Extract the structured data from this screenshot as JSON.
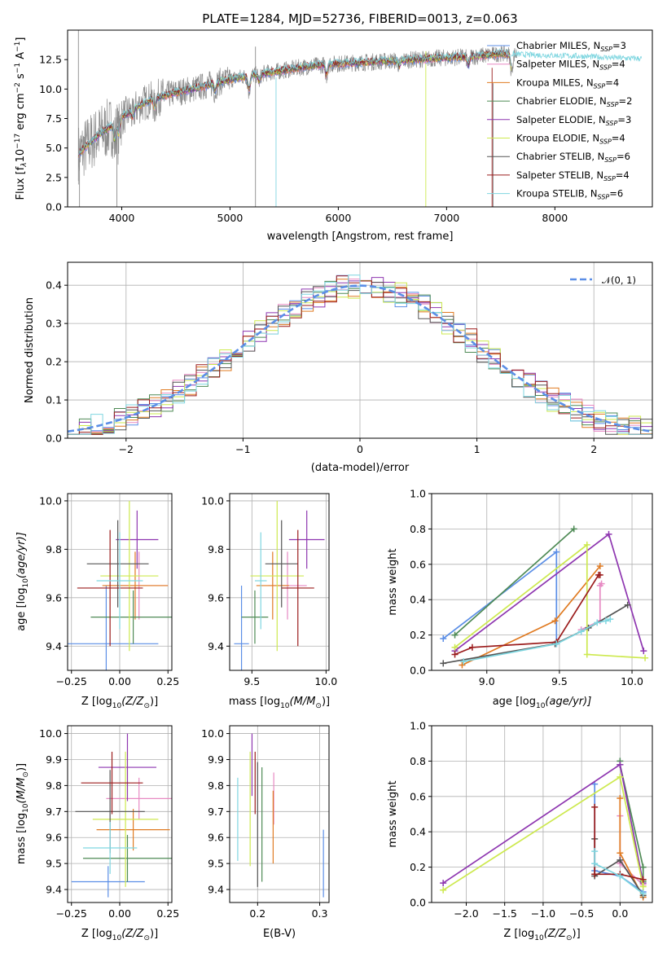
{
  "colors": {
    "Chabrier MILES": "#5b8ee6",
    "Salpeter MILES": "#e78ac3",
    "Kroupa MILES": "#e07b22",
    "Chabrier ELODIE": "#4e8a55",
    "Salpeter ELODIE": "#8e36b0",
    "Kroupa ELODIE": "#cde94f",
    "Chabrier STELIB": "#555555",
    "Salpeter STELIB": "#9b1c1c",
    "Kroupa STELIB": "#7fd6e0",
    "data": "#8c8c8c",
    "gaussian": "#5b8ee6"
  },
  "chart_data": [
    {
      "id": "spectrum",
      "type": "line",
      "title": "PLATE=1284, MJD=52736, FIBERID=0013, z=0.063",
      "xlabel": "wavelength [Angstrom, rest frame]",
      "ylabel_parts": [
        "Flux [f",
        "λ",
        "10",
        "−17",
        " erg cm",
        "−2",
        " s",
        "−1",
        " A",
        "−1",
        "]"
      ],
      "xlim": [
        3500,
        8900
      ],
      "ylim": [
        0,
        15
      ],
      "xticks": [
        "4000",
        "5000",
        "6000",
        "7000",
        "8000"
      ],
      "yticks": [
        "0.0",
        "2.5",
        "5.0",
        "7.5",
        "10.0",
        "12.5"
      ],
      "legend_position": "right",
      "legend": [
        {
          "base": "Chabrier MILES, N",
          "sub": "SSP",
          "tail": "=3"
        },
        {
          "base": "Salpeter MILES, N",
          "sub": "SSP",
          "tail": "=4"
        },
        {
          "base": "Kroupa MILES, N",
          "sub": "SSP",
          "tail": "=4"
        },
        {
          "base": "Chabrier ELODIE, N",
          "sub": "SSP",
          "tail": "=2"
        },
        {
          "base": "Salpeter ELODIE, N",
          "sub": "SSP",
          "tail": "=3"
        },
        {
          "base": "Kroupa ELODIE, N",
          "sub": "SSP",
          "tail": "=4"
        },
        {
          "base": "Chabrier STELIB, N",
          "sub": "SSP",
          "tail": "=6"
        },
        {
          "base": "Salpeter STELIB, N",
          "sub": "SSP",
          "tail": "=4"
        },
        {
          "base": "Kroupa STELIB, N",
          "sub": "SSP",
          "tail": "=6"
        }
      ],
      "continuum": [
        [
          3600,
          4.5
        ],
        [
          3700,
          5.4
        ],
        [
          3800,
          6.2
        ],
        [
          3900,
          6.8
        ],
        [
          4000,
          7.6
        ],
        [
          4100,
          8.2
        ],
        [
          4200,
          8.8
        ],
        [
          4300,
          9.2
        ],
        [
          4500,
          9.7
        ],
        [
          4700,
          10.1
        ],
        [
          4900,
          10.6
        ],
        [
          5100,
          11.0
        ],
        [
          5300,
          11.3
        ],
        [
          5500,
          11.6
        ],
        [
          5700,
          11.9
        ],
        [
          5900,
          12.1
        ],
        [
          6100,
          12.2
        ],
        [
          6300,
          12.3
        ],
        [
          6500,
          12.4
        ],
        [
          6700,
          12.5
        ],
        [
          6900,
          12.6
        ],
        [
          7100,
          12.7
        ],
        [
          7300,
          12.8
        ],
        [
          7500,
          13.0
        ],
        [
          7800,
          12.9
        ],
        [
          8200,
          12.8
        ],
        [
          8700,
          12.6
        ]
      ]
    },
    {
      "id": "residuals",
      "type": "histogram",
      "xlabel": "(data-model)/error",
      "ylabel": "Normed distribution",
      "xlim": [
        -2.5,
        2.5
      ],
      "ylim": [
        0,
        0.46
      ],
      "xticks": [
        "−2",
        "−1",
        "0",
        "1",
        "2"
      ],
      "yticks": [
        "0.0",
        "0.1",
        "0.2",
        "0.3",
        "0.4"
      ],
      "legend_position": "top-right",
      "legend_label": "𝒩(0, 1)",
      "bin_width": 0.1
    },
    {
      "id": "age-vs-Z",
      "type": "scatter",
      "xlabel_base": "Z [log",
      "xlabel_sub": "10",
      "xlabel_tail": "(Z/Z",
      "xlabel_sun": "⊙",
      "xlabel_end": ")]",
      "ylabel": "age  [log₁₀(age/yr)]",
      "xlim": [
        -0.27,
        0.27
      ],
      "ylim": [
        9.3,
        10.03
      ],
      "xticks": [
        "−0.25",
        "0.00",
        "0.25"
      ],
      "yticks": [
        "9.4",
        "9.6",
        "9.8",
        "10.0"
      ],
      "points": [
        {
          "model": "Chabrier MILES",
          "x": -0.07,
          "y": 9.41,
          "xerr": 0.27,
          "yerr": 0.24
        },
        {
          "model": "Salpeter MILES",
          "x": 0.1,
          "y": 9.65,
          "xerr": 0.15,
          "yerr": 0.14
        },
        {
          "model": "Kroupa MILES",
          "x": 0.08,
          "y": 9.65,
          "xerr": 0.17,
          "yerr": 0.14
        },
        {
          "model": "Chabrier ELODIE",
          "x": 0.07,
          "y": 9.52,
          "xerr": 0.22,
          "yerr": 0.11
        },
        {
          "model": "Salpeter ELODIE",
          "x": 0.09,
          "y": 9.84,
          "xerr": 0.11,
          "yerr": 0.12
        },
        {
          "model": "Kroupa ELODIE",
          "x": 0.05,
          "y": 9.69,
          "xerr": 0.15,
          "yerr": 0.31
        },
        {
          "model": "Chabrier STELIB",
          "x": -0.01,
          "y": 9.74,
          "xerr": 0.16,
          "yerr": 0.18
        },
        {
          "model": "Salpeter STELIB",
          "x": -0.05,
          "y": 9.64,
          "xerr": 0.17,
          "yerr": 0.24
        },
        {
          "model": "Kroupa STELIB",
          "x": 0.0,
          "y": 9.67,
          "xerr": 0.12,
          "yerr": 0.2
        }
      ]
    },
    {
      "id": "age-vs-mass",
      "type": "scatter",
      "xlabel_base": "mass [log",
      "xlabel_sub": "10",
      "xlabel_tail": "(M/M",
      "xlabel_sun": "⊙",
      "xlabel_end": ")]",
      "xlim": [
        9.35,
        10.02
      ],
      "ylim": [
        9.3,
        10.03
      ],
      "xticks": [
        "9.5",
        "10.0"
      ],
      "yticks": [
        "9.4",
        "9.6",
        "9.8",
        "10.0"
      ],
      "points": [
        {
          "model": "Chabrier MILES",
          "x": 9.43,
          "y": 9.41,
          "xerr": 0.05,
          "yerr": 0.24
        },
        {
          "model": "Salpeter MILES",
          "x": 9.74,
          "y": 9.65,
          "xerr": 0.13,
          "yerr": 0.14
        },
        {
          "model": "Kroupa MILES",
          "x": 9.64,
          "y": 9.65,
          "xerr": 0.11,
          "yerr": 0.14
        },
        {
          "model": "Chabrier ELODIE",
          "x": 9.52,
          "y": 9.52,
          "xerr": 0.09,
          "yerr": 0.11
        },
        {
          "model": "Salpeter ELODIE",
          "x": 9.87,
          "y": 9.84,
          "xerr": 0.12,
          "yerr": 0.12
        },
        {
          "model": "Kroupa ELODIE",
          "x": 9.67,
          "y": 9.69,
          "xerr": 0.18,
          "yerr": 0.31
        },
        {
          "model": "Chabrier STELIB",
          "x": 9.7,
          "y": 9.74,
          "xerr": 0.11,
          "yerr": 0.18
        },
        {
          "model": "Salpeter STELIB",
          "x": 9.81,
          "y": 9.64,
          "xerr": 0.11,
          "yerr": 0.24
        },
        {
          "model": "Kroupa STELIB",
          "x": 9.56,
          "y": 9.67,
          "xerr": 0.04,
          "yerr": 0.2
        }
      ]
    },
    {
      "id": "weight-vs-age",
      "type": "line",
      "xlabel_base": "age  [log",
      "xlabel_sub": "10",
      "xlabel_tail": "(age/yr)]",
      "ylabel": "mass weight",
      "xlim": [
        8.62,
        10.14
      ],
      "ylim": [
        0.0,
        1.0
      ],
      "xticks": [
        "9.0",
        "9.5",
        "10.0"
      ],
      "yticks": [
        "0.0",
        "0.2",
        "0.4",
        "0.6",
        "0.8",
        "1.0"
      ],
      "series": [
        {
          "model": "Chabrier MILES",
          "x": [
            8.7,
            9.48,
            9.48
          ],
          "y": [
            0.18,
            0.67,
            0.15
          ]
        },
        {
          "model": "Salpeter MILES",
          "x": [
            9.65,
            9.78,
            9.78,
            9.79
          ],
          "y": [
            0.23,
            0.28,
            0.48,
            0.49
          ]
        },
        {
          "model": "Kroupa MILES",
          "x": [
            8.83,
            9.47,
            9.78
          ],
          "y": [
            0.03,
            0.28,
            0.59
          ]
        },
        {
          "model": "Chabrier ELODIE",
          "x": [
            8.78,
            9.6
          ],
          "y": [
            0.2,
            0.8
          ]
        },
        {
          "model": "Salpeter ELODIE",
          "x": [
            8.78,
            9.84,
            10.08
          ],
          "y": [
            0.11,
            0.77,
            0.11
          ]
        },
        {
          "model": "Kroupa ELODIE",
          "x": [
            8.78,
            9.69,
            9.69,
            10.09
          ],
          "y": [
            0.13,
            0.71,
            0.09,
            0.07
          ]
        },
        {
          "model": "Chabrier STELIB",
          "x": [
            8.7,
            9.47,
            9.7,
            9.97
          ],
          "y": [
            0.04,
            0.15,
            0.24,
            0.37
          ]
        },
        {
          "model": "Salpeter STELIB",
          "x": [
            8.78,
            8.9,
            9.48,
            9.77,
            9.78
          ],
          "y": [
            0.09,
            0.13,
            0.16,
            0.54,
            0.54
          ]
        },
        {
          "model": "Kroupa STELIB",
          "x": [
            8.84,
            9.48,
            9.65,
            9.76,
            9.82,
            9.85
          ],
          "y": [
            0.05,
            0.15,
            0.22,
            0.27,
            0.28,
            0.29
          ]
        }
      ]
    },
    {
      "id": "mass-vs-Z",
      "type": "scatter",
      "xlabel_base": "Z [log",
      "xlabel_sub": "10",
      "xlabel_tail": "(Z/Z",
      "xlabel_sun": "⊙",
      "xlabel_end": ")]",
      "xlim": [
        -0.27,
        0.27
      ],
      "ylim": [
        9.35,
        10.03
      ],
      "xticks": [
        "−0.25",
        "0.00",
        "0.25"
      ],
      "yticks": [
        "9.4",
        "9.5",
        "9.6",
        "9.7",
        "9.8",
        "9.9",
        "10.0"
      ],
      "points": [
        {
          "model": "Chabrier MILES",
          "x": -0.06,
          "y": 9.43,
          "xerr": 0.19,
          "yerr": 0.06
        },
        {
          "model": "Salpeter MILES",
          "x": 0.1,
          "y": 9.75,
          "xerr": 0.17,
          "yerr": 0.08
        },
        {
          "model": "Kroupa MILES",
          "x": 0.07,
          "y": 9.63,
          "xerr": 0.19,
          "yerr": 0.08
        },
        {
          "model": "Chabrier ELODIE",
          "x": 0.04,
          "y": 9.52,
          "xerr": 0.23,
          "yerr": 0.09
        },
        {
          "model": "Salpeter ELODIE",
          "x": 0.04,
          "y": 9.87,
          "xerr": 0.15,
          "yerr": 0.13
        },
        {
          "model": "Kroupa ELODIE",
          "x": 0.03,
          "y": 9.67,
          "xerr": 0.17,
          "yerr": 0.26
        },
        {
          "model": "Chabrier STELIB",
          "x": -0.05,
          "y": 9.7,
          "xerr": 0.18,
          "yerr": 0.16
        },
        {
          "model": "Salpeter STELIB",
          "x": -0.04,
          "y": 9.81,
          "xerr": 0.16,
          "yerr": 0.12
        },
        {
          "model": "Kroupa STELIB",
          "x": -0.05,
          "y": 9.56,
          "xerr": 0.14,
          "yerr": 0.1
        }
      ]
    },
    {
      "id": "mass-vs-ebv",
      "type": "scatter",
      "xlabel": "E(B-V)",
      "xlim": [
        0.155,
        0.315
      ],
      "ylim": [
        9.35,
        10.03
      ],
      "xticks": [
        "0.2",
        "0.3"
      ],
      "yticks": [
        "9.4",
        "9.5",
        "9.6",
        "9.7",
        "9.8",
        "9.9",
        "10.0"
      ],
      "points": [
        {
          "model": "Chabrier MILES",
          "x": 0.306,
          "y": 9.5,
          "yerr": 0.13
        },
        {
          "model": "Salpeter MILES",
          "x": 0.226,
          "y": 9.75,
          "yerr": 0.1
        },
        {
          "model": "Kroupa MILES",
          "x": 0.225,
          "y": 9.64,
          "yerr": 0.14
        },
        {
          "model": "Chabrier ELODIE",
          "x": 0.207,
          "y": 9.65,
          "yerr": 0.22
        },
        {
          "model": "Salpeter ELODIE",
          "x": 0.191,
          "y": 9.88,
          "yerr": 0.12
        },
        {
          "model": "Kroupa ELODIE",
          "x": 0.188,
          "y": 9.71,
          "yerr": 0.22
        },
        {
          "model": "Chabrier STELIB",
          "x": 0.2,
          "y": 9.65,
          "yerr": 0.24
        },
        {
          "model": "Salpeter STELIB",
          "x": 0.196,
          "y": 9.81,
          "yerr": 0.12
        },
        {
          "model": "Kroupa STELIB",
          "x": 0.168,
          "y": 9.67,
          "yerr": 0.16
        }
      ]
    },
    {
      "id": "weight-vs-Z",
      "type": "line",
      "xlabel_base": "Z [log",
      "xlabel_sub": "10",
      "xlabel_tail": "(Z/Z",
      "xlabel_sun": "⊙",
      "xlabel_end": ")]",
      "ylabel": "mass weight",
      "xlim": [
        -2.45,
        0.42
      ],
      "ylim": [
        0.0,
        1.0
      ],
      "xticks": [
        "−2.0",
        "−1.5",
        "−1.0",
        "−0.5",
        "0.0"
      ],
      "yticks": [
        "0.0",
        "0.2",
        "0.4",
        "0.6",
        "0.8",
        "1.0"
      ],
      "series": [
        {
          "model": "Chabrier MILES",
          "x": [
            -0.33,
            -0.33,
            0.0,
            0.3
          ],
          "y": [
            0.67,
            0.18,
            0.15,
            0.06
          ]
        },
        {
          "model": "Salpeter MILES",
          "x": [
            0.0,
            0.0,
            0.0,
            0.3
          ],
          "y": [
            0.49,
            0.23,
            0.22,
            0.1
          ]
        },
        {
          "model": "Kroupa MILES",
          "x": [
            0.3,
            0.0,
            0.0
          ],
          "y": [
            0.03,
            0.28,
            0.59
          ]
        },
        {
          "model": "Chabrier ELODIE",
          "x": [
            0.0,
            0.0,
            0.3,
            0.3
          ],
          "y": [
            0.8,
            0.78,
            0.2,
            0.12
          ]
        },
        {
          "model": "Salpeter ELODIE",
          "x": [
            -2.3,
            0.0,
            0.3
          ],
          "y": [
            0.11,
            0.78,
            0.11
          ]
        },
        {
          "model": "Kroupa ELODIE",
          "x": [
            -2.3,
            0.0,
            0.3,
            0.3
          ],
          "y": [
            0.07,
            0.71,
            0.09,
            0.13
          ]
        },
        {
          "model": "Chabrier STELIB",
          "x": [
            -0.33,
            -0.33,
            0.0,
            0.3
          ],
          "y": [
            0.36,
            0.15,
            0.24,
            0.04
          ]
        },
        {
          "model": "Salpeter STELIB",
          "x": [
            -0.33,
            -0.33,
            0.0,
            0.3
          ],
          "y": [
            0.54,
            0.16,
            0.16,
            0.13
          ]
        },
        {
          "model": "Kroupa STELIB",
          "x": [
            -0.33,
            -0.33,
            0.0,
            0.3
          ],
          "y": [
            0.29,
            0.22,
            0.15,
            0.05
          ]
        }
      ]
    }
  ]
}
